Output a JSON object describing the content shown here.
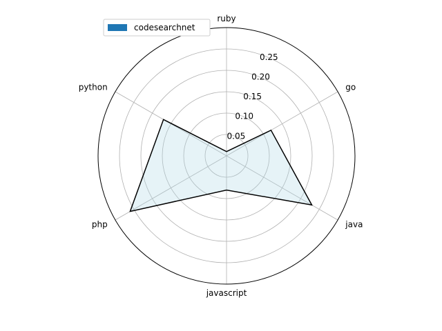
{
  "chart_data": {
    "type": "radar",
    "categories": [
      "ruby",
      "go",
      "java",
      "javascript",
      "php",
      "python"
    ],
    "series": [
      {
        "name": "codesearchnet",
        "values": [
          0.01,
          0.12,
          0.23,
          0.08,
          0.26,
          0.17
        ]
      }
    ],
    "r_ticks": [
      0.05,
      0.1,
      0.15,
      0.2,
      0.25
    ],
    "r_tick_labels": [
      "0.05",
      "0.10",
      "0.15",
      "0.20",
      "0.25"
    ],
    "rlim": [
      0,
      0.3
    ],
    "grid": true,
    "legend_position": "top-left",
    "colors": {
      "line": "#000000",
      "fill": "#add8e6",
      "legend_patch": "#1f77b4",
      "grid": "#b0b0b0"
    }
  }
}
